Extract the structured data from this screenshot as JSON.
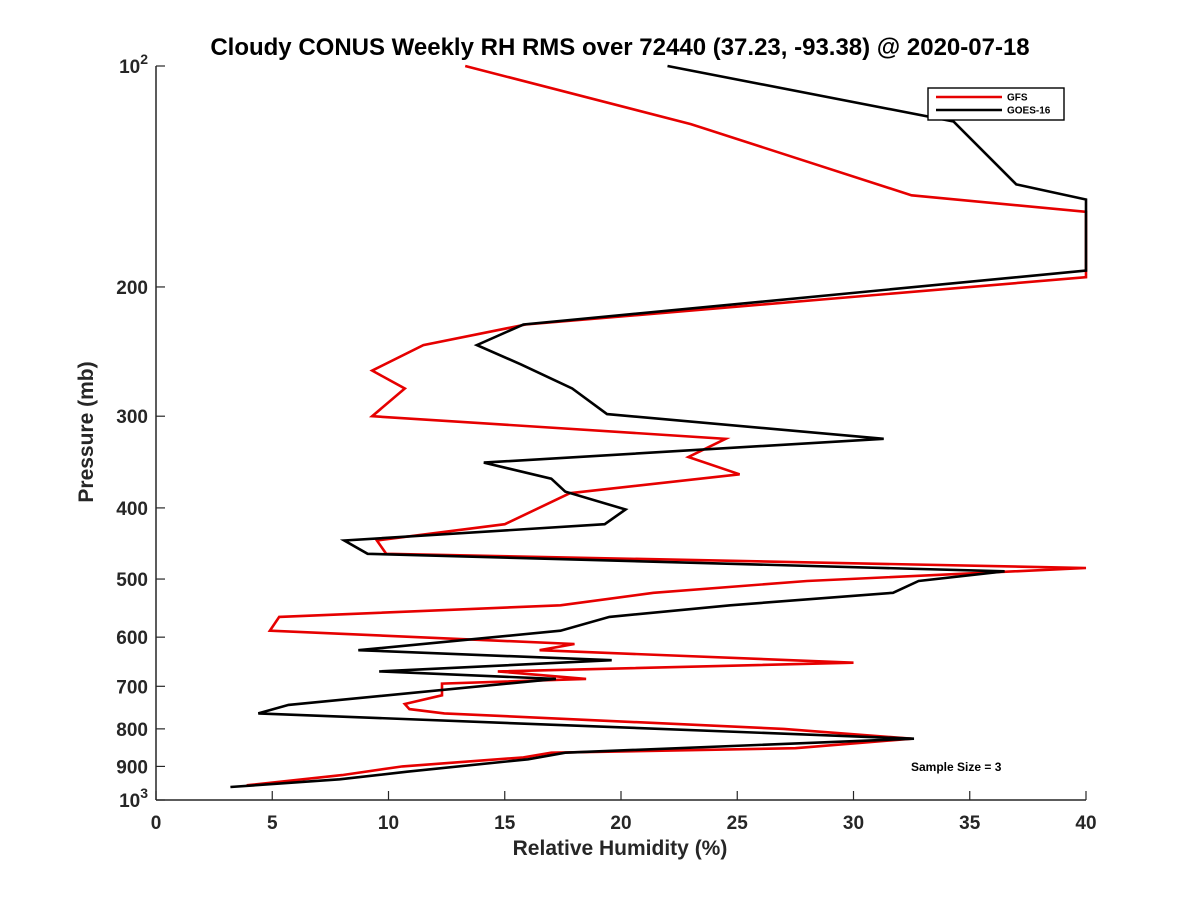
{
  "colors": {
    "gfs": "#e60000",
    "goes": "#000000",
    "axis": "#262626"
  },
  "chart_data": {
    "type": "line",
    "title": "Cloudy CONUS Weekly RH RMS over 72440 (37.23, -93.38) @ 2020-07-18",
    "xlabel": "Relative Humidity (%)",
    "ylabel": "Pressure (mb)",
    "xlim": [
      0,
      40
    ],
    "ylim": [
      100,
      1000
    ],
    "yscale": "log",
    "yreversed": true,
    "grid": false,
    "legend_position": "top-right",
    "annotation": "Sample Size = 3",
    "x_ticks": [
      "0",
      "5",
      "10",
      "15",
      "20",
      "25",
      "30",
      "35",
      "40"
    ],
    "y_ticks": [
      {
        "value": 100,
        "base": "10",
        "exp": "2"
      },
      {
        "value": 200,
        "label": "200"
      },
      {
        "value": 300,
        "label": "300"
      },
      {
        "value": 400,
        "label": "400"
      },
      {
        "value": 500,
        "label": "500"
      },
      {
        "value": 600,
        "label": "600"
      },
      {
        "value": 700,
        "label": "700"
      },
      {
        "value": 800,
        "label": "800"
      },
      {
        "value": 900,
        "label": "900"
      },
      {
        "value": 1000,
        "base": "10",
        "exp": "3"
      }
    ],
    "series": [
      {
        "name": "GFS",
        "color": "#e60000",
        "points": [
          [
            13.3,
            100
          ],
          [
            23,
            120
          ],
          [
            32.5,
            150
          ],
          [
            40,
            158
          ],
          [
            40,
            194
          ],
          [
            15.9,
            225
          ],
          [
            11.5,
            240
          ],
          [
            9.3,
            260
          ],
          [
            10.7,
            275
          ],
          [
            9.3,
            300
          ],
          [
            24.5,
            322
          ],
          [
            22.9,
            341
          ],
          [
            25.1,
            360
          ],
          [
            17.8,
            382
          ],
          [
            15.0,
            421
          ],
          [
            9.5,
            443
          ],
          [
            9.9,
            462
          ],
          [
            40,
            483
          ],
          [
            28.0,
            503
          ],
          [
            21.4,
            522
          ],
          [
            17.4,
            543
          ],
          [
            5.3,
            563
          ],
          [
            4.9,
            588
          ],
          [
            18.0,
            613
          ],
          [
            16.5,
            625
          ],
          [
            30.0,
            650
          ],
          [
            14.7,
            668
          ],
          [
            18.5,
            684
          ],
          [
            12.3,
            694
          ],
          [
            12.3,
            720
          ],
          [
            10.7,
            740
          ],
          [
            10.9,
            752
          ],
          [
            12.4,
            762
          ],
          [
            27.0,
            800
          ],
          [
            32.5,
            825
          ],
          [
            27.5,
            850
          ],
          [
            17.0,
            862
          ],
          [
            15.8,
            875
          ],
          [
            10.6,
            900
          ],
          [
            8.0,
            925
          ],
          [
            3.9,
            955
          ]
        ]
      },
      {
        "name": "GOES-16",
        "color": "#000000",
        "points": [
          [
            22.0,
            100
          ],
          [
            34.3,
            119
          ],
          [
            37.0,
            145
          ],
          [
            40,
            152
          ],
          [
            40,
            190
          ],
          [
            15.8,
            225
          ],
          [
            13.8,
            240
          ],
          [
            15.7,
            255
          ],
          [
            17.9,
            275
          ],
          [
            19.4,
            298
          ],
          [
            31.3,
            322
          ],
          [
            14.1,
            347
          ],
          [
            17.0,
            365
          ],
          [
            17.6,
            380
          ],
          [
            20.2,
            402
          ],
          [
            19.3,
            421
          ],
          [
            8.1,
            443
          ],
          [
            9.1,
            462
          ],
          [
            36.5,
            488
          ],
          [
            32.8,
            503
          ],
          [
            31.7,
            522
          ],
          [
            24.7,
            543
          ],
          [
            19.5,
            563
          ],
          [
            17.4,
            588
          ],
          [
            8.7,
            625
          ],
          [
            19.6,
            645
          ],
          [
            9.6,
            668
          ],
          [
            17.2,
            684
          ],
          [
            5.7,
            742
          ],
          [
            4.4,
            762
          ],
          [
            32.6,
            825
          ],
          [
            17.6,
            862
          ],
          [
            16.0,
            880
          ],
          [
            10.8,
            915
          ],
          [
            7.9,
            937
          ],
          [
            3.2,
            960
          ]
        ]
      }
    ]
  }
}
